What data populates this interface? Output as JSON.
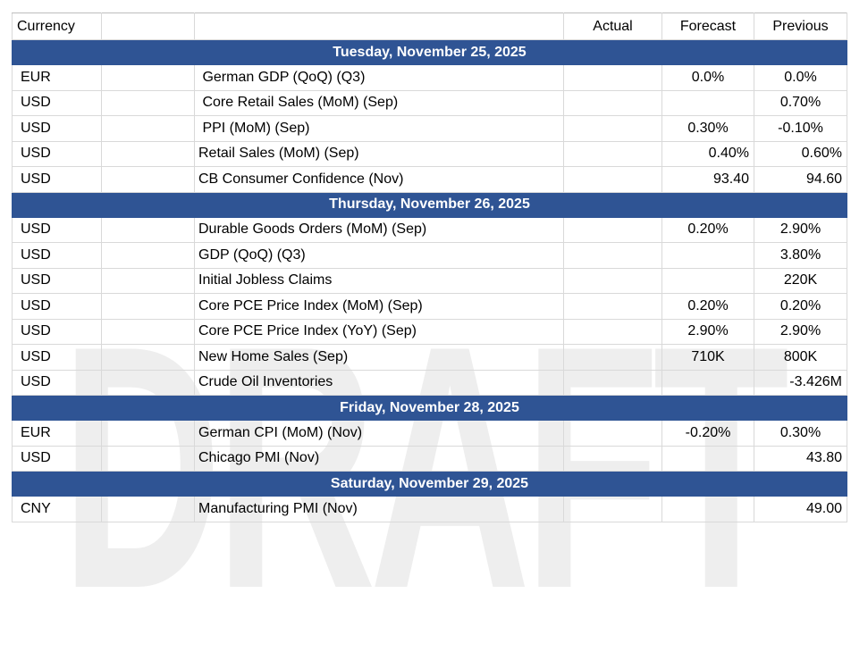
{
  "watermark": "DRAFT",
  "colors": {
    "section_bar": "#2F5494",
    "section_bar_text": "#FFFFFF",
    "border": "#D9D9D9",
    "watermark": "#EEEEEE"
  },
  "table": {
    "columns": [
      "Currency",
      "",
      "",
      "Actual",
      "Forecast",
      "Previous"
    ],
    "sections": [
      {
        "date": "Tuesday, November 25, 2025",
        "rows": [
          {
            "currency": "EUR",
            "event": " German GDP (QoQ) (Q3)",
            "actual": "",
            "forecast": "0.0%",
            "previous": "0.0%",
            "align": "center"
          },
          {
            "currency": "USD",
            "event": " Core Retail Sales (MoM) (Sep)",
            "actual": "",
            "forecast": "",
            "previous": "0.70%",
            "align": "center"
          },
          {
            "currency": "USD",
            "event": " PPI (MoM) (Sep)",
            "actual": "",
            "forecast": "0.30%",
            "previous": "-0.10%",
            "align": "center"
          },
          {
            "currency": "USD",
            "event": "Retail Sales (MoM) (Sep)",
            "actual": "",
            "forecast": "0.40%",
            "previous": "0.60%",
            "align": "right"
          },
          {
            "currency": "USD",
            "event": "CB Consumer Confidence (Nov)",
            "actual": "",
            "forecast": "93.40",
            "previous": "94.60",
            "align": "right"
          }
        ]
      },
      {
        "date": "Thursday, November 26, 2025",
        "rows": [
          {
            "currency": "USD",
            "event": "Durable Goods Orders (MoM) (Sep)",
            "actual": "",
            "forecast": "0.20%",
            "previous": "2.90%",
            "align": "center"
          },
          {
            "currency": "USD",
            "event": "GDP (QoQ) (Q3)",
            "actual": "",
            "forecast": "",
            "previous": "3.80%",
            "align": "center"
          },
          {
            "currency": "USD",
            "event": "Initial Jobless Claims",
            "actual": "",
            "forecast": "",
            "previous": "220K",
            "align": "center"
          },
          {
            "currency": "USD",
            "event": "Core PCE Price Index (MoM) (Sep)",
            "actual": "",
            "forecast": "0.20%",
            "previous": "0.20%",
            "align": "center"
          },
          {
            "currency": "USD",
            "event": "Core PCE Price Index (YoY) (Sep)",
            "actual": "",
            "forecast": "2.90%",
            "previous": "2.90%",
            "align": "center"
          },
          {
            "currency": "USD",
            "event": "New Home Sales (Sep)",
            "actual": "",
            "forecast": "710K",
            "previous": "800K",
            "align": "center"
          },
          {
            "currency": "USD",
            "event": "Crude Oil Inventories",
            "actual": "",
            "forecast": "",
            "previous": "-3.426M",
            "align": "right"
          }
        ]
      },
      {
        "date": "Friday, November 28, 2025",
        "rows": [
          {
            "currency": "EUR",
            "event": "German CPI (MoM) (Nov)",
            "actual": "",
            "forecast": "-0.20%",
            "previous": "0.30%",
            "align": "center"
          },
          {
            "currency": "USD",
            "event": "Chicago PMI (Nov)",
            "actual": "",
            "forecast": "",
            "previous": "43.80",
            "align": "right"
          }
        ]
      },
      {
        "date": "Saturday, November 29, 2025",
        "rows": [
          {
            "currency": "CNY",
            "event": "Manufacturing PMI (Nov)",
            "actual": "",
            "forecast": "",
            "previous": "49.00",
            "align": "right"
          }
        ]
      }
    ]
  }
}
